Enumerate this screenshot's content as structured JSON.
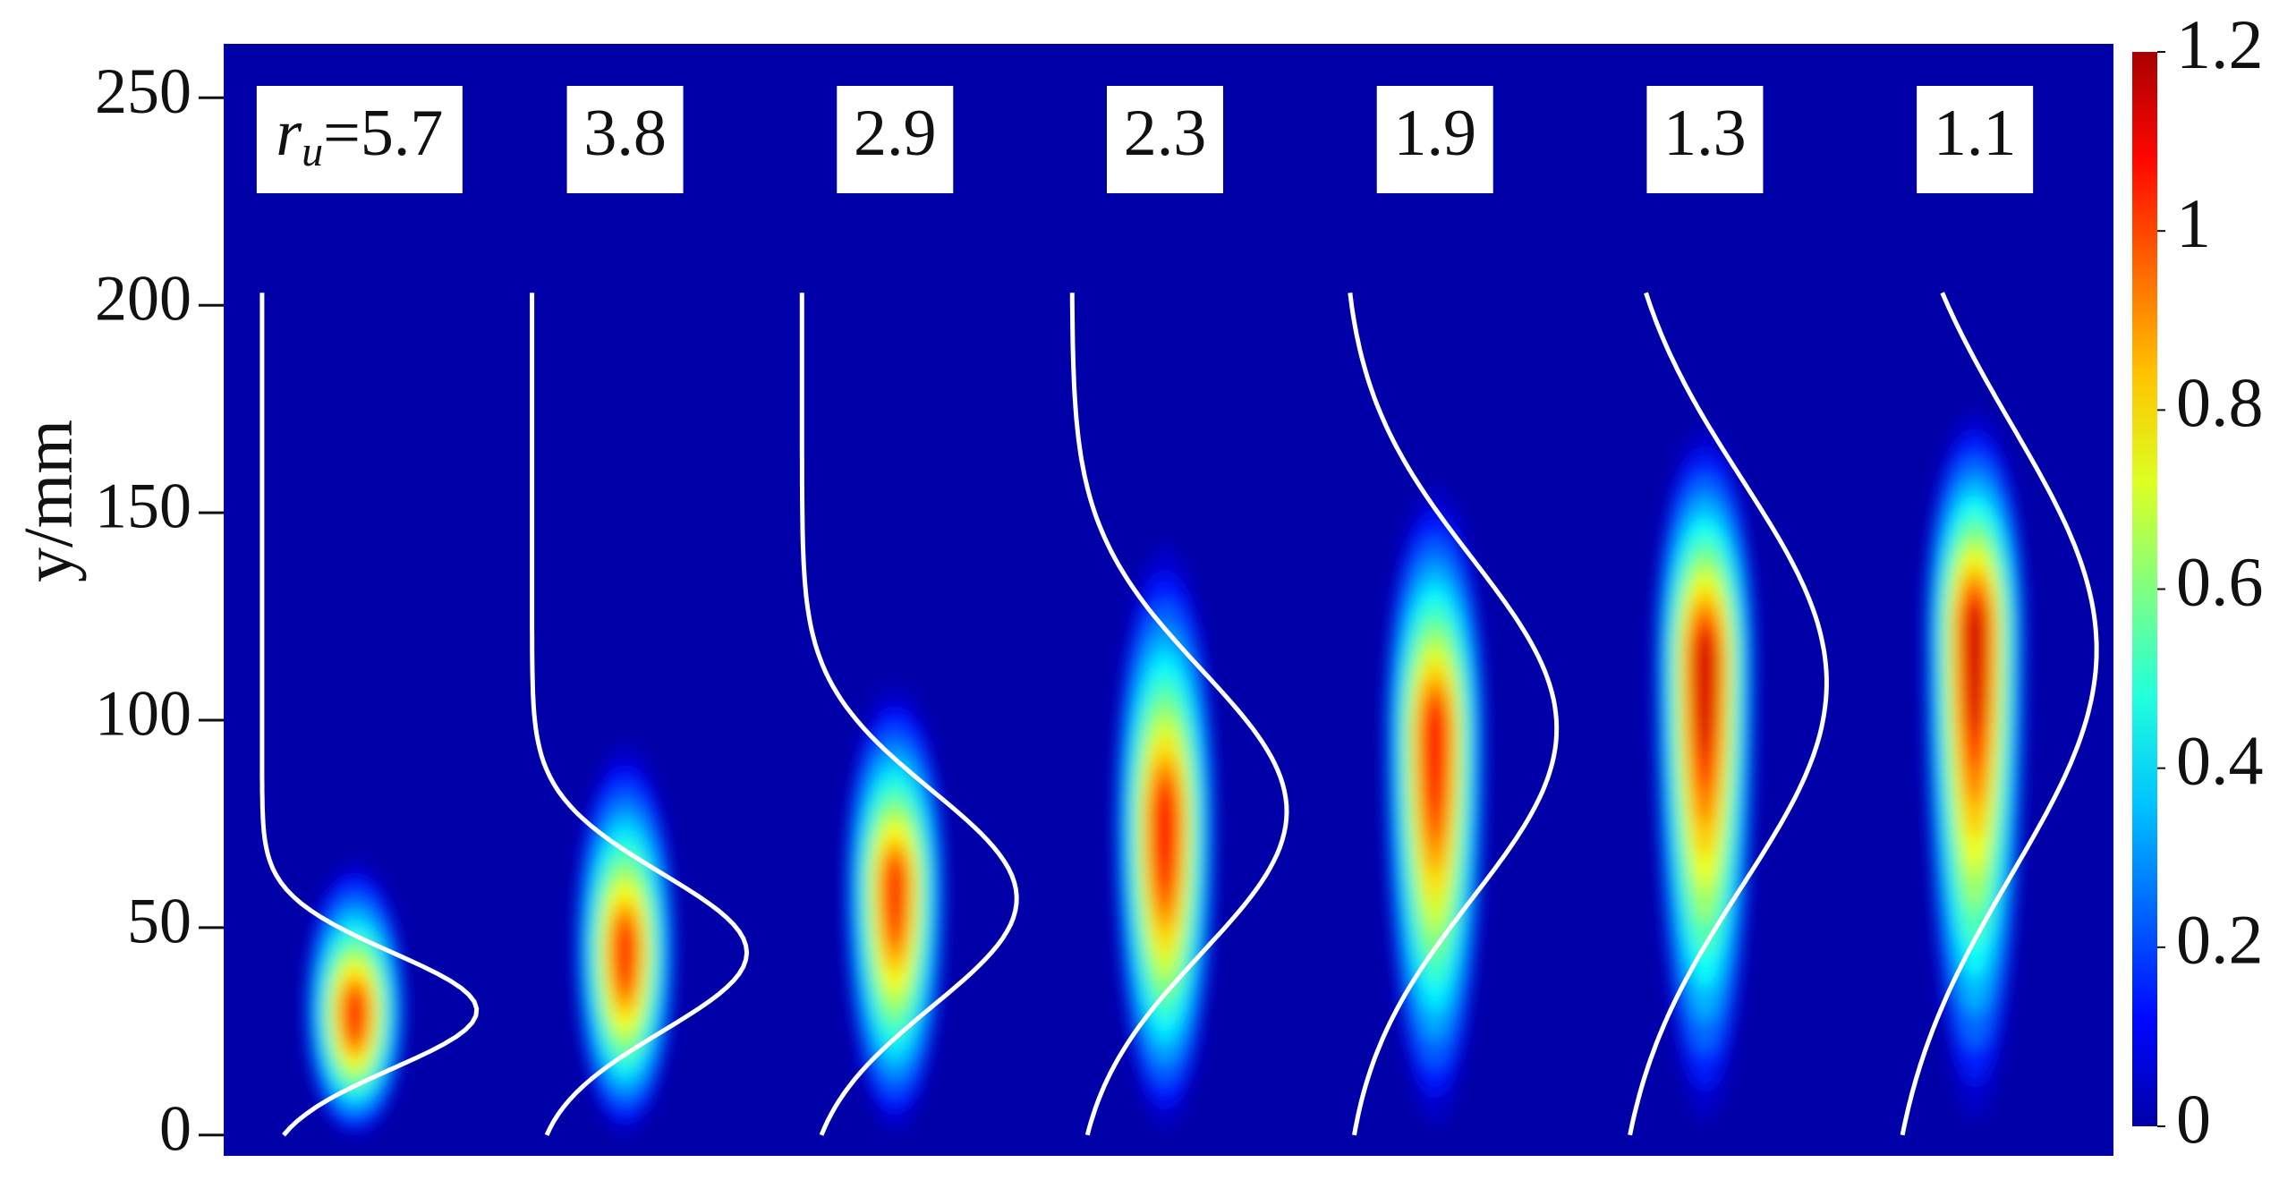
{
  "chart_data": {
    "type": "flame-map",
    "y_label": "y/mm",
    "ylim": [
      -5,
      263
    ],
    "yticks": [
      0,
      50,
      100,
      150,
      200,
      250
    ],
    "label_prefix": {
      "symbol": "r",
      "subscript": "u",
      "sign": "="
    },
    "cases": [
      {
        "label": "5.7",
        "peak_y": 30,
        "top_y": 62,
        "max_intensity": 1.0,
        "profile_peak_y": 30,
        "profile_sigma": 14
      },
      {
        "label": "3.8",
        "peak_y": 45,
        "top_y": 90,
        "max_intensity": 1.0,
        "profile_peak_y": 44,
        "profile_sigma": 19
      },
      {
        "label": "2.9",
        "peak_y": 60,
        "top_y": 104,
        "max_intensity": 1.0,
        "profile_peak_y": 57,
        "profile_sigma": 26
      },
      {
        "label": "2.3",
        "peak_y": 75,
        "top_y": 138,
        "max_intensity": 1.05,
        "profile_peak_y": 78,
        "profile_sigma": 34
      },
      {
        "label": "1.9",
        "peak_y": 96,
        "top_y": 152,
        "max_intensity": 1.05,
        "profile_peak_y": 98,
        "profile_sigma": 41
      },
      {
        "label": "1.3",
        "peak_y": 114,
        "top_y": 166,
        "max_intensity": 1.1,
        "profile_peak_y": 109,
        "profile_sigma": 49
      },
      {
        "label": "1.1",
        "peak_y": 121,
        "top_y": 170,
        "max_intensity": 1.1,
        "profile_peak_y": 117,
        "profile_sigma": 54
      }
    ],
    "profile_range": [
      0,
      203
    ],
    "colorbar": {
      "colormap": "jet",
      "lim": [
        0,
        1.2
      ],
      "ticks": [
        0,
        0.2,
        0.4,
        0.6,
        0.8,
        1.0,
        1.2
      ]
    }
  }
}
